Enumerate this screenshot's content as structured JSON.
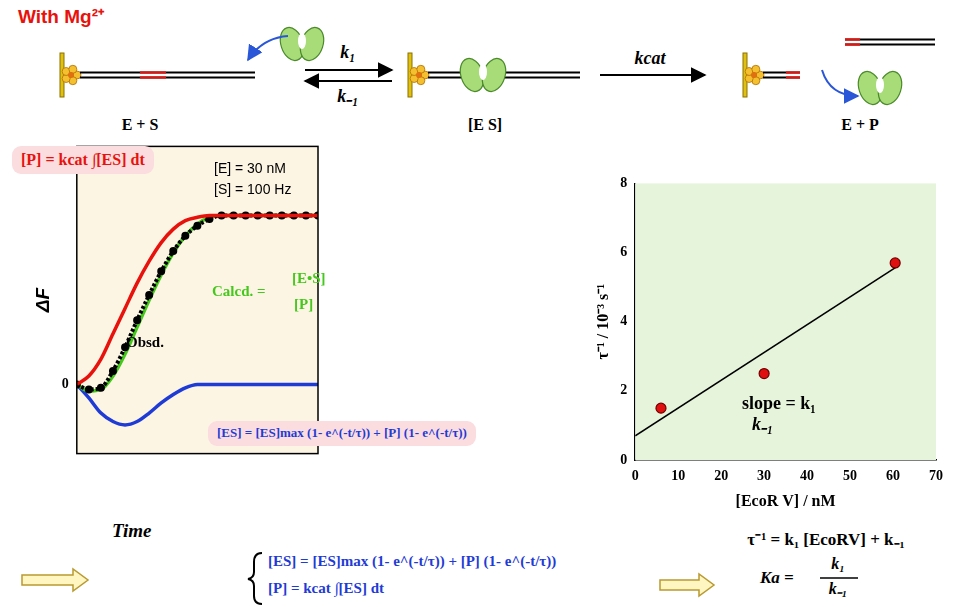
{
  "header": {
    "title": "With Mg²⁺"
  },
  "scheme": {
    "states": [
      "E + S",
      "[E S]",
      "E + P"
    ],
    "forward_rate": "k₁",
    "reverse_rate": "k₋₁",
    "catalytic_rate": "kcat"
  },
  "chart_data": [
    {
      "type": "line",
      "x_label": "Time",
      "y_label": "ΔF",
      "x": [
        0,
        5,
        10,
        15,
        20,
        25,
        30,
        35,
        40,
        45,
        50,
        55,
        60,
        65,
        70,
        75,
        80,
        85,
        90,
        95,
        100
      ],
      "xlim": [
        0,
        100
      ],
      "xticks": [],
      "ylim": [
        -0.41,
        1.41
      ],
      "yticks": [
        0
      ],
      "tick_labels": "y",
      "grid": false,
      "series": [
        {
          "color": "#e8120c",
          "line_style": "solid",
          "marker": "none",
          "values": [
            0,
            0.05,
            0.15,
            0.3,
            0.45,
            0.6,
            0.73,
            0.84,
            0.92,
            0.97,
            0.99,
            1,
            1,
            1,
            1,
            1,
            1,
            1,
            1,
            1,
            1
          ]
        },
        {
          "color": "#000000",
          "line_style": "dotted",
          "marker": "circle",
          "values": [
            0,
            -0.03,
            -0.02,
            0.08,
            0.22,
            0.38,
            0.53,
            0.67,
            0.79,
            0.88,
            0.94,
            0.98,
            1,
            1,
            1,
            1,
            1,
            1,
            1,
            1,
            1
          ]
        },
        {
          "color": "#45c81c",
          "line_style": "solid",
          "marker": "none",
          "values": [
            0,
            -0.04,
            -0.03,
            0.05,
            0.18,
            0.34,
            0.5,
            0.65,
            0.78,
            0.88,
            0.95,
            0.99,
            1,
            1,
            1,
            1,
            1,
            1,
            1,
            1,
            1
          ]
        },
        {
          "color": "#1f3bd6",
          "line_style": "solid",
          "marker": "none",
          "values": [
            0,
            -0.08,
            -0.17,
            -0.22,
            -0.24,
            -0.22,
            -0.17,
            -0.11,
            -0.06,
            -0.02,
            0,
            0,
            0,
            0,
            0,
            0,
            0,
            0,
            0,
            0,
            0
          ]
        }
      ],
      "annotations": [
        {
          "text": "[P] = kcat ∫[ES] dt",
          "color": "#e8120c"
        },
        {
          "text": "[E] = 30 nM",
          "color": "#000000"
        },
        {
          "text": "[S] = 100 Hz",
          "color": "#000000"
        },
        {
          "text": "Calcd. =",
          "color": "#45c81c"
        },
        {
          "text": "[E•S]",
          "color": "#45c81c"
        },
        {
          "text": "[P]",
          "color": "#45c81c"
        },
        {
          "text": "Obsd.",
          "color": "#000000"
        },
        {
          "text": "[ES] = [ES]max (1- e^(-t/τ)) + [P] (1- e^(-t/τ))",
          "color": "#1f3bd6"
        }
      ]
    },
    {
      "type": "scatter",
      "x_label": "[EcoR V] / nM",
      "y_label": "τ⁻¹ / 10⁻³ s⁻¹",
      "xlim": [
        0,
        70
      ],
      "xticks": [
        0,
        10,
        20,
        30,
        40,
        50,
        60,
        70
      ],
      "ylim": [
        0,
        8
      ],
      "yticks": [
        0,
        2,
        4,
        6,
        8
      ],
      "grid": false,
      "series": [
        {
          "type": "scatter",
          "color": "#e01010",
          "marker": "circle",
          "x": [
            6,
            30,
            60.5
          ],
          "values": [
            1.5,
            2.5,
            5.7
          ]
        },
        {
          "type": "line",
          "color": "#000000",
          "line_style": "solid",
          "marker": "none",
          "x": [
            0,
            61
          ],
          "values": [
            0.7,
            5.6
          ]
        }
      ],
      "annotations": [
        {
          "text": "slope = k₁",
          "color": "#000000"
        },
        {
          "text": "k₋₁",
          "color": "#000000"
        }
      ]
    }
  ],
  "equations": {
    "left": [
      {
        "text": "[ES] = [ES]max (1- e^(-t/τ)) + [P] (1- e^(-t/τ))",
        "color": "#1f3bd6"
      },
      {
        "text": "[P] = kcat ∫[ES] dt",
        "color": "#1f3bd6"
      }
    ],
    "right": {
      "rate_law": "τ⁻¹ = k₁ [EcoRV] + k₋₁",
      "ka_label": "Ka =",
      "ka_numerator": "k₁",
      "ka_denominator": "k₋₁"
    }
  }
}
